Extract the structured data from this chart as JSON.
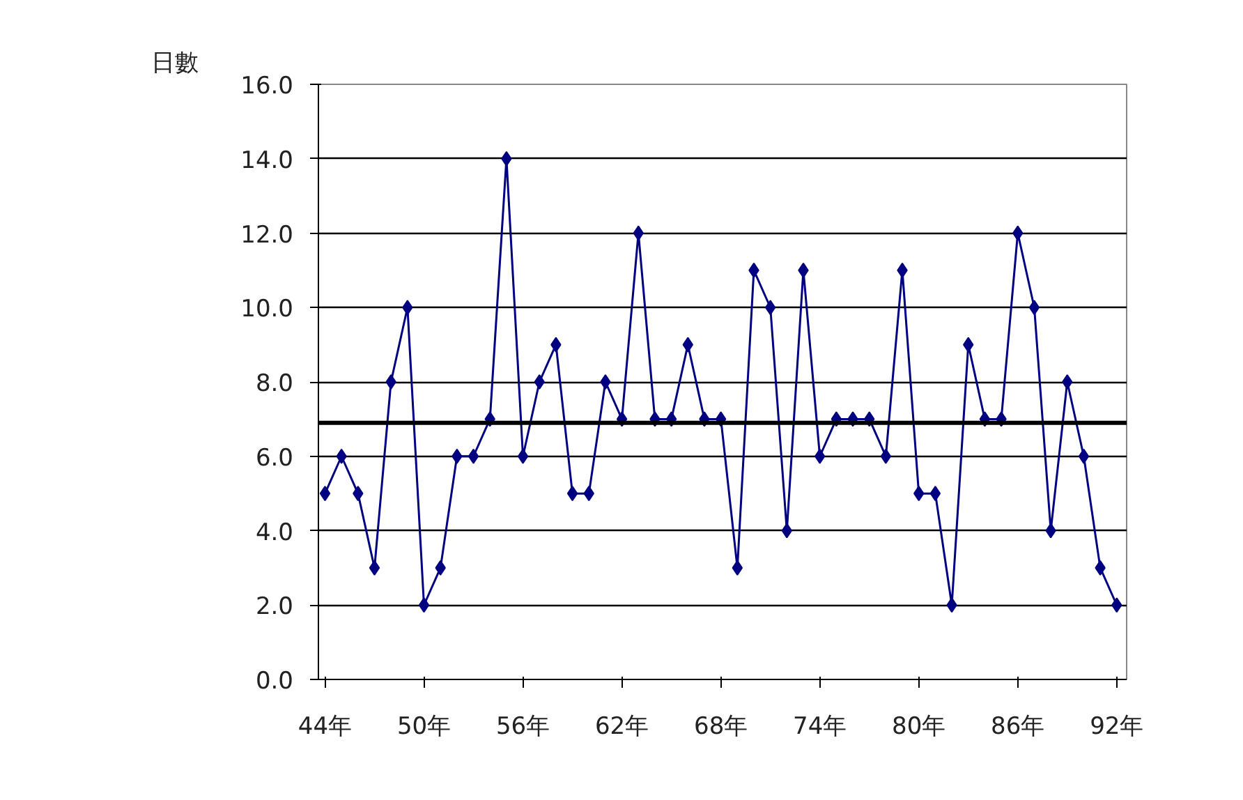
{
  "chart_data": {
    "type": "line",
    "ylabel": "日數",
    "x": [
      44,
      45,
      46,
      47,
      48,
      49,
      50,
      51,
      52,
      53,
      54,
      55,
      56,
      57,
      58,
      59,
      60,
      61,
      62,
      63,
      64,
      65,
      66,
      67,
      68,
      69,
      70,
      71,
      72,
      73,
      74,
      75,
      76,
      77,
      78,
      79,
      80,
      81,
      82,
      83,
      84,
      85,
      86,
      87,
      88,
      89,
      90,
      91,
      92
    ],
    "series": [
      {
        "color": "#000080",
        "values": [
          5,
          6,
          5,
          3,
          8,
          10,
          2,
          3,
          6,
          6,
          7,
          14,
          6,
          8,
          9,
          5,
          5,
          8,
          7,
          12,
          7,
          7,
          9,
          7,
          7,
          3,
          11,
          10,
          4,
          11,
          6,
          7,
          7,
          7,
          6,
          11,
          5,
          5,
          2,
          9,
          7,
          7,
          12,
          10,
          4,
          8,
          6,
          3,
          2
        ]
      }
    ],
    "xlim": [
      43.6,
      92.6
    ],
    "xticks": [
      {
        "value": 44,
        "label": "44年"
      },
      {
        "value": 50,
        "label": "50年"
      },
      {
        "value": 56,
        "label": "56年"
      },
      {
        "value": 62,
        "label": "62年"
      },
      {
        "value": 68,
        "label": "68年"
      },
      {
        "value": 74,
        "label": "74年"
      },
      {
        "value": 80,
        "label": "80年"
      },
      {
        "value": 86,
        "label": "86年"
      },
      {
        "value": 92,
        "label": "92年"
      }
    ],
    "ylim": [
      0,
      16
    ],
    "yticks": [
      {
        "value": 0,
        "label": "0.0"
      },
      {
        "value": 2,
        "label": "2.0"
      },
      {
        "value": 4,
        "label": "4.0"
      },
      {
        "value": 6,
        "label": "6.0"
      },
      {
        "value": 8,
        "label": "8.0"
      },
      {
        "value": 10,
        "label": "10.0"
      },
      {
        "value": 12,
        "label": "12.0"
      },
      {
        "value": 14,
        "label": "14.0"
      },
      {
        "value": 16,
        "label": "16.0"
      }
    ],
    "ref_lines": [
      {
        "axis": "y",
        "value": 6.9,
        "color": "#000000"
      }
    ],
    "grid": "y",
    "marker": "diamond",
    "line_style": "solid"
  }
}
